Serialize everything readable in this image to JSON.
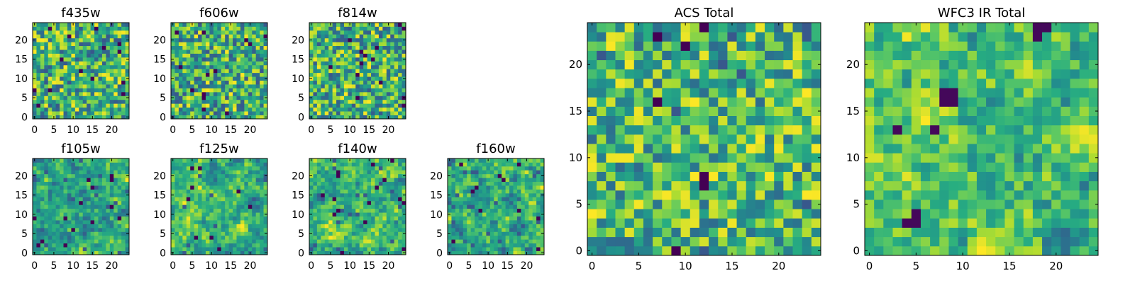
{
  "chart_data": [
    {
      "type": "heatmap",
      "title": "f435w",
      "xlabel": "",
      "ylabel": "",
      "grid_size": 25,
      "x_ticks": [
        "0",
        "5",
        "10",
        "15",
        "20"
      ],
      "y_ticks": [
        "0",
        "5",
        "10",
        "15",
        "20"
      ],
      "xlim": [
        -0.5,
        24.5
      ],
      "ylim": [
        -0.5,
        24.5
      ],
      "origin": "lower",
      "colormap": "viridis",
      "smooth": 0,
      "seed": 11,
      "dark_fraction": 0.05
    },
    {
      "type": "heatmap",
      "title": "f606w",
      "xlabel": "",
      "ylabel": "",
      "grid_size": 25,
      "x_ticks": [
        "0",
        "5",
        "10",
        "15",
        "20"
      ],
      "y_ticks": [
        "0",
        "5",
        "10",
        "15",
        "20"
      ],
      "xlim": [
        -0.5,
        24.5
      ],
      "ylim": [
        -0.5,
        24.5
      ],
      "origin": "lower",
      "colormap": "viridis",
      "smooth": 0,
      "seed": 23,
      "dark_fraction": 0.05
    },
    {
      "type": "heatmap",
      "title": "f814w",
      "xlabel": "",
      "ylabel": "",
      "grid_size": 25,
      "x_ticks": [
        "0",
        "5",
        "10",
        "15",
        "20"
      ],
      "y_ticks": [
        "0",
        "5",
        "10",
        "15",
        "20"
      ],
      "xlim": [
        -0.5,
        24.5
      ],
      "ylim": [
        -0.5,
        24.5
      ],
      "origin": "lower",
      "colormap": "viridis",
      "smooth": 0,
      "seed": 37,
      "dark_fraction": 0.05
    },
    {
      "type": "heatmap",
      "title": "f105w",
      "xlabel": "",
      "ylabel": "",
      "grid_size": 25,
      "x_ticks": [
        "0",
        "5",
        "10",
        "15",
        "20"
      ],
      "y_ticks": [
        "0",
        "5",
        "10",
        "15",
        "20"
      ],
      "xlim": [
        -0.5,
        24.5
      ],
      "ylim": [
        -0.5,
        24.5
      ],
      "origin": "lower",
      "colormap": "viridis",
      "smooth": 1,
      "seed": 41,
      "dark_fraction": 0.04
    },
    {
      "type": "heatmap",
      "title": "f125w",
      "xlabel": "",
      "ylabel": "",
      "grid_size": 25,
      "x_ticks": [
        "0",
        "5",
        "10",
        "15",
        "20"
      ],
      "y_ticks": [
        "0",
        "5",
        "10",
        "15",
        "20"
      ],
      "xlim": [
        -0.5,
        24.5
      ],
      "ylim": [
        -0.5,
        24.5
      ],
      "origin": "lower",
      "colormap": "viridis",
      "smooth": 1,
      "seed": 53,
      "dark_fraction": 0.04
    },
    {
      "type": "heatmap",
      "title": "f140w",
      "xlabel": "",
      "ylabel": "",
      "grid_size": 25,
      "x_ticks": [
        "0",
        "5",
        "10",
        "15",
        "20"
      ],
      "y_ticks": [
        "0",
        "5",
        "10",
        "15",
        "20"
      ],
      "xlim": [
        -0.5,
        24.5
      ],
      "ylim": [
        -0.5,
        24.5
      ],
      "origin": "lower",
      "colormap": "viridis",
      "smooth": 1,
      "seed": 67,
      "dark_fraction": 0.04
    },
    {
      "type": "heatmap",
      "title": "f160w",
      "xlabel": "",
      "ylabel": "",
      "grid_size": 25,
      "x_ticks": [
        "0",
        "5",
        "10",
        "15",
        "20"
      ],
      "y_ticks": [
        "0",
        "5",
        "10",
        "15",
        "20"
      ],
      "xlim": [
        -0.5,
        24.5
      ],
      "ylim": [
        -0.5,
        24.5
      ],
      "origin": "lower",
      "colormap": "viridis",
      "smooth": 1,
      "seed": 79,
      "dark_fraction": 0.05
    },
    {
      "type": "heatmap",
      "title": "ACS Total",
      "xlabel": "",
      "ylabel": "",
      "grid_size": 25,
      "x_ticks": [
        "0",
        "5",
        "10",
        "15",
        "20"
      ],
      "y_ticks": [
        "0",
        "5",
        "10",
        "15",
        "20"
      ],
      "xlim": [
        -0.5,
        24.5
      ],
      "ylim": [
        -0.5,
        24.5
      ],
      "origin": "lower",
      "colormap": "viridis",
      "smooth": 0,
      "seed": 97,
      "dark_fraction": 0.03,
      "value_range": [
        0.35,
        1.0
      ]
    },
    {
      "type": "heatmap",
      "title": "WFC3 IR Total",
      "xlabel": "",
      "ylabel": "",
      "grid_size": 25,
      "x_ticks": [
        "0",
        "5",
        "10",
        "15",
        "20"
      ],
      "y_ticks": [
        "0",
        "5",
        "10",
        "15",
        "20"
      ],
      "xlim": [
        -0.5,
        24.5
      ],
      "ylim": [
        -0.5,
        24.5
      ],
      "origin": "lower",
      "colormap": "viridis",
      "smooth": 2,
      "seed": 131,
      "dark_fraction": 0.0,
      "value_range": [
        0.35,
        1.0
      ],
      "dark_cells": [
        [
          8,
          17
        ],
        [
          9,
          17
        ],
        [
          8,
          16
        ],
        [
          9,
          16
        ],
        [
          5,
          4
        ],
        [
          5,
          3
        ],
        [
          4,
          3
        ],
        [
          18,
          23
        ],
        [
          18,
          24
        ],
        [
          19,
          24
        ],
        [
          3,
          13
        ],
        [
          7,
          13
        ]
      ]
    }
  ]
}
